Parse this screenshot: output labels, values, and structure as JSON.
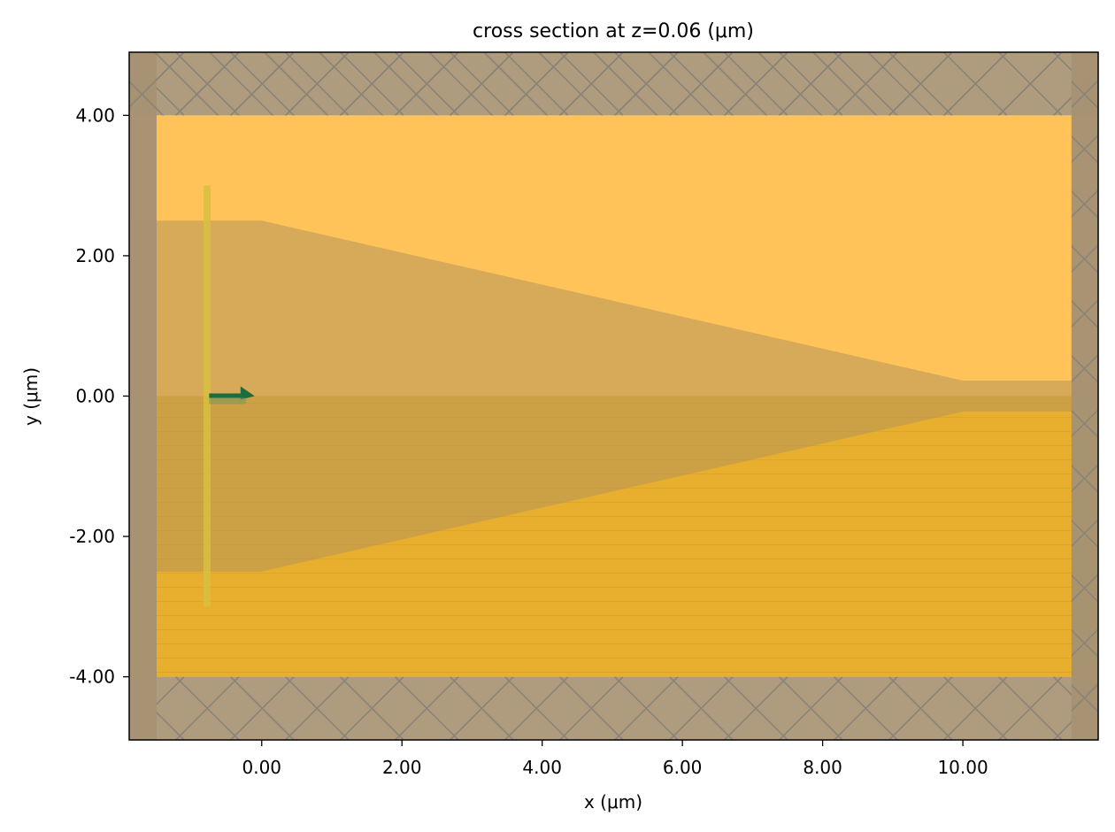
{
  "chart_data": {
    "type": "area",
    "title": "cross section at z=0.06 (μm)",
    "xlabel": "x (μm)",
    "ylabel": "y (μm)",
    "xlim": [
      -1.89,
      11.93
    ],
    "ylim": [
      -4.9,
      4.9
    ],
    "x_ticks": [
      0,
      2,
      4,
      6,
      8,
      10
    ],
    "x_tick_labels": [
      "0.00",
      "2.00",
      "4.00",
      "6.00",
      "8.00",
      "10.00"
    ],
    "y_ticks": [
      -4,
      -2,
      0,
      2,
      4
    ],
    "y_tick_labels": [
      "-4.00",
      "-2.00",
      "0.00",
      "2.00",
      "4.00"
    ],
    "grid": false,
    "legend": "none",
    "structures": [
      {
        "name": "upper cladding",
        "x_range": [
          -1.89,
          11.93
        ],
        "y_range": [
          0,
          4.0
        ],
        "color": "#FFC35A"
      },
      {
        "name": "substrate",
        "x_range": [
          -1.89,
          11.93
        ],
        "y_range": [
          -4.0,
          0
        ],
        "color": "#E8AE2E"
      },
      {
        "name": "taper",
        "polygon": [
          [
            -1.89,
            2.5
          ],
          [
            0,
            2.5
          ],
          [
            10.0,
            0.22
          ],
          [
            11.93,
            0.22
          ],
          [
            11.93,
            -0.22
          ],
          [
            10.0,
            -0.22
          ],
          [
            0,
            -2.5
          ],
          [
            -1.89,
            -2.5
          ]
        ],
        "color": "#B4965A"
      }
    ],
    "pml": {
      "y_bands": [
        [
          4.0,
          4.9
        ],
        [
          -4.9,
          -4.0
        ]
      ],
      "x_bands": [
        [
          -1.89,
          -1.5
        ],
        [
          11.55,
          11.93
        ]
      ],
      "color": "#A89272"
    },
    "source": {
      "x": -0.78,
      "y_range": [
        -3.0,
        3.0
      ],
      "color": "#D8C040"
    },
    "arrow": {
      "x_start": -0.75,
      "x_end": -0.1,
      "y": 0.0,
      "color": "#1E6B3F"
    }
  }
}
